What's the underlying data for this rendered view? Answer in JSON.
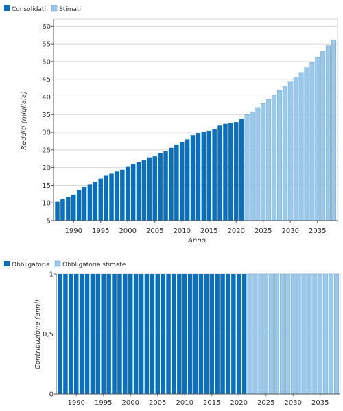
{
  "colors": {
    "consolidated": "#0a6fbd",
    "estimated": "#9cc8e9",
    "estimated_stroke": "#6aa8d8",
    "grid": "#d6d6d6",
    "axis": "#555555"
  },
  "chart_data": [
    {
      "type": "bar",
      "legend": {
        "placement": "top-left",
        "items": [
          "Consolidati",
          "Stimati"
        ]
      },
      "xlabel": "Anno",
      "ylabel": "Redditi (migliaia)",
      "ylim": [
        5,
        62
      ],
      "yticks": [
        5,
        10,
        15,
        20,
        25,
        30,
        35,
        40,
        45,
        50,
        55,
        60
      ],
      "xticks": [
        1990,
        1995,
        2000,
        2005,
        2010,
        2015,
        2020,
        2025,
        2030,
        2035
      ],
      "grid": true,
      "series": [
        {
          "name": "Consolidati",
          "x": [
            1987,
            1988,
            1989,
            1990,
            1991,
            1992,
            1993,
            1994,
            1995,
            1996,
            1997,
            1998,
            1999,
            2000,
            2001,
            2002,
            2003,
            2004,
            2005,
            2006,
            2007,
            2008,
            2009,
            2010,
            2011,
            2012,
            2013,
            2014,
            2015,
            2016,
            2017,
            2018,
            2019,
            2020,
            2021
          ],
          "values": [
            10.3,
            11.0,
            11.7,
            12.4,
            13.6,
            14.5,
            15.2,
            15.9,
            16.9,
            17.7,
            18.3,
            18.9,
            19.4,
            20.2,
            20.9,
            21.5,
            22.1,
            22.9,
            23.2,
            24.0,
            24.6,
            25.6,
            26.5,
            27.1,
            28.0,
            29.2,
            29.8,
            30.2,
            30.4,
            30.9,
            31.9,
            32.4,
            32.7,
            32.9,
            33.8
          ]
        },
        {
          "name": "Stimati",
          "x": [
            2022,
            2023,
            2024,
            2025,
            2026,
            2027,
            2028,
            2029,
            2030,
            2031,
            2032,
            2033,
            2034,
            2035,
            2036,
            2037,
            2038
          ],
          "values": [
            35.0,
            35.8,
            37.0,
            38.1,
            39.3,
            40.6,
            41.8,
            43.1,
            44.4,
            45.6,
            46.9,
            48.3,
            49.8,
            51.3,
            52.9,
            54.5,
            56.1
          ]
        }
      ]
    },
    {
      "type": "bar",
      "legend": {
        "placement": "top-left",
        "items": [
          "Obbligatoria",
          "Obbligatoria stimate"
        ]
      },
      "xlabel": "",
      "ylabel": "Contribuzione (anni)",
      "ylim": [
        0,
        1
      ],
      "yticks": [
        "0",
        "0,5",
        "1"
      ],
      "xticks": [
        1990,
        1995,
        2000,
        2005,
        2010,
        2015,
        2020,
        2025,
        2030,
        2035
      ],
      "grid": true,
      "series": [
        {
          "name": "Obbligatoria",
          "x": [
            1987,
            1988,
            1989,
            1990,
            1991,
            1992,
            1993,
            1994,
            1995,
            1996,
            1997,
            1998,
            1999,
            2000,
            2001,
            2002,
            2003,
            2004,
            2005,
            2006,
            2007,
            2008,
            2009,
            2010,
            2011,
            2012,
            2013,
            2014,
            2015,
            2016,
            2017,
            2018,
            2019,
            2020,
            2021
          ],
          "values": [
            1,
            1,
            1,
            1,
            1,
            1,
            1,
            1,
            1,
            1,
            1,
            1,
            1,
            1,
            1,
            1,
            1,
            1,
            1,
            1,
            1,
            1,
            1,
            1,
            1,
            1,
            1,
            1,
            1,
            1,
            1,
            1,
            1,
            1,
            1
          ]
        },
        {
          "name": "Obbligatoria stimate",
          "x": [
            2022,
            2023,
            2024,
            2025,
            2026,
            2027,
            2028,
            2029,
            2030,
            2031,
            2032,
            2033,
            2034,
            2035,
            2036,
            2037,
            2038
          ],
          "values": [
            1,
            1,
            1,
            1,
            1,
            1,
            1,
            1,
            1,
            1,
            1,
            1,
            1,
            1,
            1,
            1,
            1
          ]
        }
      ]
    }
  ]
}
